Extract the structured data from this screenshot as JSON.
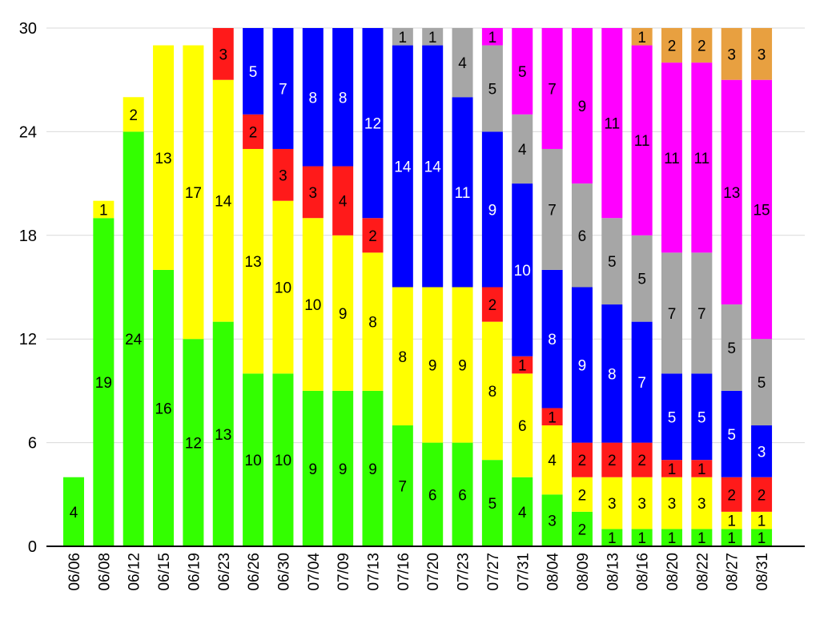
{
  "chart_data": {
    "type": "bar",
    "stacked": true,
    "categories": [
      "06/06",
      "06/08",
      "06/12",
      "06/15",
      "06/19",
      "06/23",
      "06/26",
      "06/30",
      "07/04",
      "07/09",
      "07/13",
      "07/16",
      "07/20",
      "07/23",
      "07/27",
      "07/31",
      "08/04",
      "08/09",
      "08/13",
      "08/16",
      "08/20",
      "08/22",
      "08/27",
      "08/31"
    ],
    "series": [
      {
        "color": "#33ff00",
        "values": [
          4,
          19,
          24,
          16,
          12,
          13,
          10,
          10,
          9,
          9,
          9,
          7,
          6,
          6,
          5,
          4,
          3,
          2,
          1,
          1,
          1,
          1,
          1,
          1
        ]
      },
      {
        "color": "#ffff00",
        "values": [
          0,
          1,
          2,
          13,
          17,
          14,
          13,
          10,
          10,
          9,
          8,
          8,
          9,
          9,
          8,
          6,
          4,
          2,
          3,
          3,
          3,
          3,
          1,
          1
        ]
      },
      {
        "color": "#ff1a1a",
        "values": [
          0,
          0,
          0,
          0,
          0,
          3,
          2,
          3,
          3,
          4,
          2,
          0,
          0,
          0,
          2,
          1,
          1,
          2,
          2,
          2,
          1,
          1,
          2,
          2
        ]
      },
      {
        "color": "#0000ff",
        "values": [
          0,
          0,
          0,
          0,
          0,
          0,
          5,
          7,
          8,
          8,
          12,
          14,
          14,
          11,
          9,
          10,
          8,
          9,
          8,
          7,
          5,
          5,
          5,
          3
        ]
      },
      {
        "color": "#a6a6a6",
        "values": [
          0,
          0,
          0,
          0,
          0,
          0,
          0,
          0,
          0,
          0,
          0,
          1,
          1,
          4,
          5,
          4,
          7,
          6,
          5,
          5,
          7,
          7,
          5,
          5
        ]
      },
      {
        "color": "#ff00ff",
        "values": [
          0,
          0,
          0,
          0,
          0,
          0,
          0,
          0,
          0,
          0,
          0,
          0,
          0,
          0,
          1,
          5,
          7,
          9,
          11,
          11,
          11,
          11,
          13,
          15
        ]
      },
      {
        "color": "#e8a040",
        "values": [
          0,
          0,
          0,
          0,
          0,
          0,
          0,
          0,
          0,
          0,
          0,
          0,
          0,
          0,
          0,
          0,
          0,
          0,
          0,
          1,
          2,
          2,
          3,
          3
        ]
      }
    ],
    "ylim": [
      0,
      30
    ],
    "yticks": [
      "0",
      "6",
      "12",
      "18",
      "24",
      "30"
    ],
    "grid": true,
    "title": "",
    "xlabel": "",
    "ylabel": ""
  }
}
